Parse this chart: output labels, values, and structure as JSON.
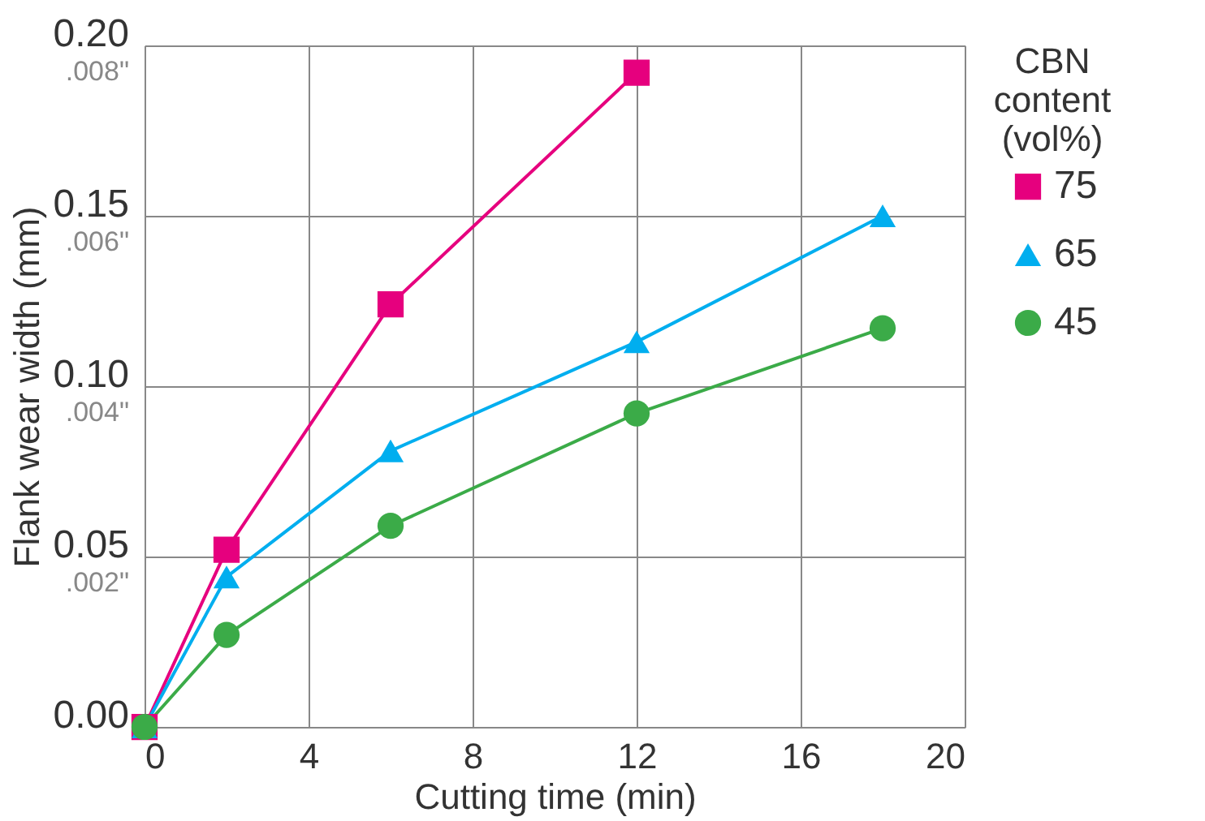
{
  "chart_data": {
    "type": "line",
    "xlabel": "Cutting time (min)",
    "ylabel": "Flank wear width (mm)",
    "legend_title": "CBN content (vol%)",
    "legend": "right",
    "xlim": [
      0,
      20
    ],
    "xticks": [
      0,
      4,
      8,
      12,
      16,
      20
    ],
    "ylim": [
      0,
      0.2
    ],
    "yticks": [
      {
        "value": 0,
        "label": "0.00"
      },
      0.05,
      {
        "value": 0.1,
        "label": "0.10"
      },
      0.15,
      {
        "value": 0.2,
        "label": "0.20"
      }
    ],
    "y2lim": [
      0,
      0.008
    ],
    "y2ticks": [
      {
        "value": 0.002,
        "label": ".002\""
      },
      {
        "value": 0.004,
        "label": ".004\""
      },
      {
        "value": 0.006,
        "label": ".006\""
      },
      {
        "value": 0.008,
        "label": ".008\""
      }
    ],
    "grid": true,
    "line_style": "solid",
    "series": [
      {
        "name": "75",
        "color": "#e6007e",
        "marker": "square",
        "x": [
          0,
          2,
          6,
          12
        ],
        "values": [
          0,
          0.052,
          0.124,
          0.192
        ]
      },
      {
        "name": "65",
        "color": "#00aeef",
        "marker": "triangle",
        "x": [
          0,
          2,
          6,
          12,
          18
        ],
        "values": [
          0,
          0.044,
          0.081,
          0.113,
          0.15
        ]
      },
      {
        "name": "45",
        "color": "#3bab48",
        "marker": "circle",
        "x": [
          0,
          2,
          6,
          12,
          18
        ],
        "values": [
          0,
          0.027,
          0.059,
          0.092,
          0.117
        ]
      }
    ]
  }
}
